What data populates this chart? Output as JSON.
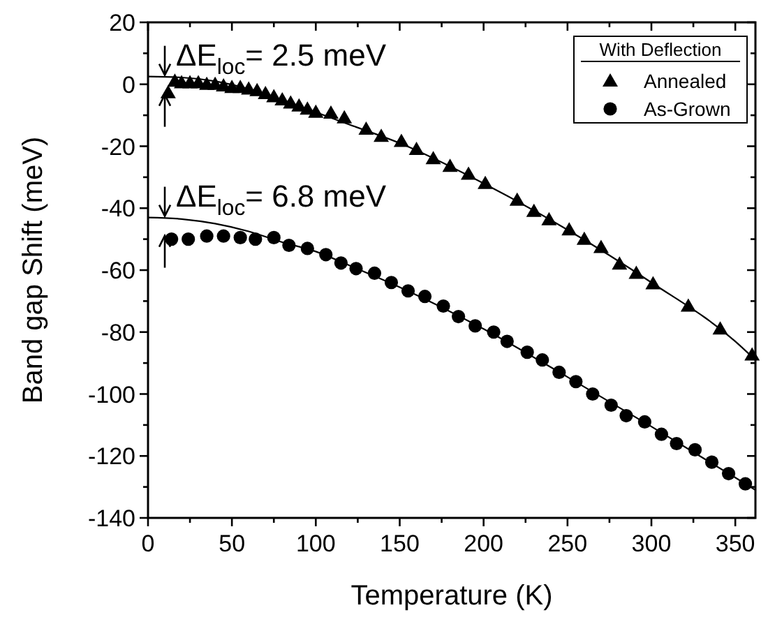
{
  "chart_data": {
    "type": "scatter",
    "xlabel": "Temperature (K)",
    "ylabel": "Band gap Shift (meV)",
    "legend_title": "With Deflection",
    "legend": "top right",
    "grid": false,
    "xlim": [
      0,
      362
    ],
    "xticks": [
      0,
      {
        "value": 25,
        "label": null
      },
      50,
      {
        "value": 75,
        "label": null
      },
      100,
      {
        "value": 125,
        "label": null
      },
      150,
      {
        "value": 175,
        "label": null
      },
      200,
      {
        "value": 225,
        "label": null
      },
      250,
      {
        "value": 275,
        "label": null
      },
      300,
      {
        "value": 325,
        "label": null
      },
      350
    ],
    "ylim": [
      -140,
      20
    ],
    "yticks": [
      -140,
      {
        "value": -130,
        "label": null
      },
      -120,
      {
        "value": -110,
        "label": null
      },
      -100,
      {
        "value": -90,
        "label": null
      },
      -80,
      {
        "value": -70,
        "label": null
      },
      -60,
      {
        "value": -50,
        "label": null
      },
      -40,
      {
        "value": -30,
        "label": null
      },
      -20,
      {
        "value": -10,
        "label": null
      },
      0,
      {
        "value": 10,
        "label": null
      },
      20
    ],
    "series": [
      {
        "name": "Annealed",
        "marker": "triangle",
        "color": "#000000",
        "x": [
          12,
          16,
          20,
          25,
          30,
          35,
          40,
          45,
          50,
          55,
          60,
          65,
          70,
          75,
          80,
          85,
          90,
          95,
          100,
          109,
          117,
          130,
          139,
          151,
          160,
          170,
          180,
          191,
          201,
          220,
          230,
          239,
          251,
          260,
          270,
          281,
          291,
          301,
          322,
          341,
          360
        ],
        "values": [
          -2.7,
          1,
          0.5,
          0.5,
          0.5,
          0,
          0,
          -0.5,
          -1,
          -1,
          -1.5,
          -2,
          -3,
          -4,
          -5,
          -6,
          -7,
          -8,
          -9,
          -9.3,
          -10.8,
          -14.5,
          -16.8,
          -18.4,
          -21,
          -24,
          -26.5,
          -29,
          -32,
          -37.4,
          -41,
          -43.7,
          -47,
          -50,
          -52.7,
          -58,
          -61,
          -64.4,
          -71.6,
          -79,
          -87.4
        ]
      },
      {
        "name": "As-Grown",
        "marker": "circle",
        "color": "#000000",
        "x": [
          14,
          24,
          35,
          45,
          55,
          64,
          75,
          84,
          95,
          106,
          115,
          124,
          135,
          145,
          155,
          165,
          176,
          185,
          195,
          206,
          214,
          226,
          235,
          245,
          255,
          265,
          276,
          285,
          296,
          306,
          315,
          326,
          336,
          346,
          356
        ],
        "values": [
          -50,
          -50,
          -49,
          -49,
          -49.5,
          -50,
          -49.5,
          -52,
          -53,
          -55,
          -57.7,
          -59.5,
          -61,
          -64,
          -66.7,
          -68.5,
          -71.6,
          -75,
          -78,
          -80,
          -83,
          -86.5,
          -89,
          -93,
          -96,
          -100,
          -103.6,
          -107,
          -109,
          -113,
          -116,
          -118,
          -122,
          -125.7,
          -129
        ]
      },
      {
        "type": "line",
        "marker": "none",
        "line_style": "solid",
        "color": "#000000",
        "x": [
          0,
          20,
          40,
          60,
          80,
          100,
          120,
          150,
          200,
          250,
          300,
          350,
          362
        ],
        "values": [
          2.5,
          2.2,
          1,
          -1.5,
          -5,
          -9,
          -13,
          -19,
          -32,
          -47,
          -64,
          -83,
          -89
        ]
      },
      {
        "type": "line",
        "marker": "none",
        "line_style": "solid",
        "color": "#000000",
        "x": [
          0,
          20,
          40,
          60,
          80,
          100,
          120,
          150,
          200,
          250,
          300,
          350,
          362
        ],
        "values": [
          -43,
          -43.5,
          -45,
          -47.5,
          -51,
          -54,
          -58.5,
          -65.5,
          -79,
          -94.5,
          -110.5,
          -127,
          -131
        ]
      }
    ],
    "annotations": [
      {
        "text": "ΔE$_{loc}$= 2.5 meV",
        "x": 10,
        "y": 2.5
      },
      {
        "text": "ΔE$_{loc}$= 6.8 meV",
        "x": 10,
        "y": -43
      }
    ]
  }
}
